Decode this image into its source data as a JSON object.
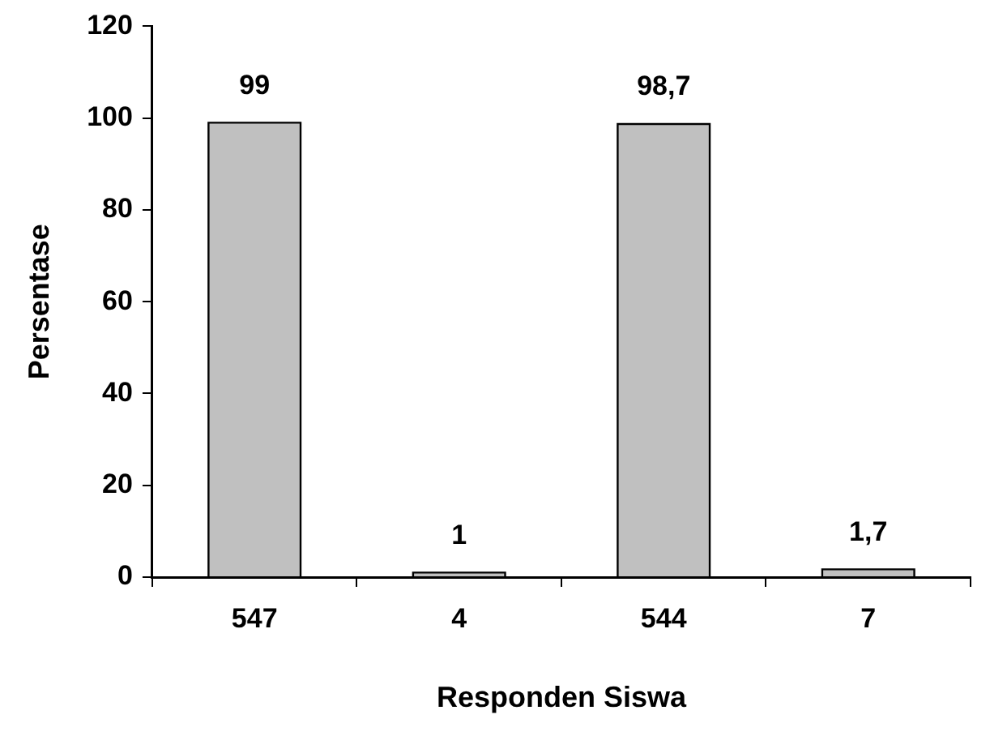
{
  "chart_data": {
    "type": "bar",
    "xlabel": "Responden Siswa",
    "ylabel": "Persentase",
    "categories": [
      "547",
      "4",
      "544",
      "7"
    ],
    "values": [
      99,
      1,
      98.7,
      1.7
    ],
    "value_labels": [
      "99",
      "1",
      "98,7",
      "1,7"
    ],
    "color": "#c0c0c0",
    "ylim": [
      0,
      120
    ],
    "yticks": [
      0,
      20,
      40,
      60,
      80,
      100,
      120
    ],
    "grid": false,
    "legend": false
  }
}
